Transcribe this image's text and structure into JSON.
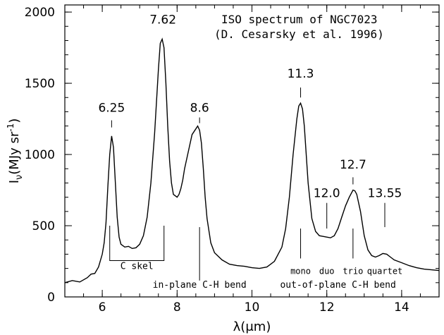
{
  "chart_data": {
    "type": "line",
    "title_lines": [
      "ISO spectrum of NGC7023",
      "(D. Cesarsky et al. 1996)"
    ],
    "xlabel": "λ(μm)",
    "ylabel_base": "I",
    "ylabel_sub": "ν",
    "ylabel_rest": "(MJy sr",
    "ylabel_sup": "-1",
    "ylabel_close": ")",
    "xlim": [
      5,
      15
    ],
    "ylim": [
      0,
      2050
    ],
    "xticks": [
      6,
      8,
      10,
      12,
      14
    ],
    "xtick_labels": [
      "6",
      "8",
      "10",
      "12",
      "14"
    ],
    "yticks": [
      0,
      500,
      1000,
      1500,
      2000
    ],
    "ytick_labels": [
      "0",
      "500",
      "1000",
      "1500",
      "2000"
    ],
    "x_minor_step": 0.5,
    "y_minor_step": 100,
    "grid": false,
    "series": [
      {
        "x": [
          5.0,
          5.2,
          5.4,
          5.6,
          5.7,
          5.8,
          5.9,
          6.0,
          6.05,
          6.1,
          6.15,
          6.2,
          6.25,
          6.3,
          6.35,
          6.4,
          6.45,
          6.5,
          6.6,
          6.7,
          6.8,
          6.9,
          7.0,
          7.1,
          7.2,
          7.3,
          7.4,
          7.5,
          7.55,
          7.6,
          7.65,
          7.7,
          7.75,
          7.8,
          7.85,
          7.9,
          8.0,
          8.05,
          8.1,
          8.15,
          8.2,
          8.3,
          8.4,
          8.5,
          8.55,
          8.6,
          8.65,
          8.7,
          8.75,
          8.8,
          8.9,
          9.0,
          9.2,
          9.4,
          9.6,
          9.8,
          10.0,
          10.2,
          10.4,
          10.6,
          10.8,
          10.9,
          11.0,
          11.1,
          11.2,
          11.25,
          11.3,
          11.35,
          11.4,
          11.5,
          11.6,
          11.7,
          11.8,
          11.9,
          12.0,
          12.1,
          12.2,
          12.3,
          12.4,
          12.5,
          12.6,
          12.7,
          12.75,
          12.8,
          12.9,
          13.0,
          13.1,
          13.2,
          13.3,
          13.4,
          13.5,
          13.6,
          13.7,
          13.8,
          14.0,
          14.2,
          14.4,
          14.6,
          14.8,
          15.0
        ],
        "y": [
          100,
          115,
          105,
          135,
          160,
          165,
          210,
          300,
          380,
          520,
          780,
          1000,
          1130,
          1050,
          800,
          560,
          420,
          370,
          350,
          355,
          340,
          345,
          370,
          430,
          560,
          800,
          1150,
          1600,
          1780,
          1810,
          1750,
          1500,
          1200,
          950,
          800,
          720,
          700,
          720,
          760,
          820,
          900,
          1020,
          1140,
          1180,
          1200,
          1170,
          1080,
          900,
          700,
          550,
          380,
          310,
          260,
          230,
          220,
          215,
          205,
          200,
          210,
          250,
          350,
          480,
          700,
          1000,
          1250,
          1340,
          1360,
          1320,
          1200,
          800,
          550,
          460,
          430,
          425,
          420,
          415,
          430,
          480,
          560,
          640,
          700,
          750,
          745,
          720,
          600,
          430,
          330,
          290,
          280,
          290,
          305,
          300,
          280,
          260,
          240,
          220,
          205,
          195,
          190,
          185
        ]
      }
    ],
    "peak_labels": [
      {
        "text": "6.25",
        "x": 6.25,
        "y_text": 1300,
        "line_top": 1190,
        "line_bottom": 1240
      },
      {
        "text": "7.62",
        "x": 7.62,
        "y_text": 1920,
        "line_top": 1840,
        "line_bottom": 1840
      },
      {
        "text": "8.6",
        "x": 8.6,
        "y_text": 1300,
        "line_top": 1220,
        "line_bottom": 1260
      },
      {
        "text": "11.3",
        "x": 11.3,
        "y_text": 1540,
        "line_top": 1400,
        "line_bottom": 1470
      },
      {
        "text": "12.0",
        "x": 12.0,
        "y_text": 700,
        "line_top": 480,
        "line_bottom": 660
      },
      {
        "text": "12.7",
        "x": 12.7,
        "y_text": 900,
        "line_top": 790,
        "line_bottom": 840
      },
      {
        "text": "13.55",
        "x": 13.55,
        "y_text": 700,
        "line_top": 490,
        "line_bottom": 660
      }
    ],
    "annotations": {
      "c_skel": {
        "text": "C skel",
        "x_left": 6.2,
        "x_right": 7.65,
        "y_top": 500,
        "y_bottom": 255,
        "label_y": 195
      },
      "in_plane": {
        "text": "in-plane C-H bend",
        "line_x": 8.6,
        "line_top": 490,
        "line_bottom": 115,
        "label_x": 8.6,
        "label_y": 65
      },
      "out_of_plane": {
        "text": "out-of-plane C-H bend",
        "label_x": 12.3,
        "label_y": 65
      },
      "mono": {
        "text": "mono",
        "line_x": 11.3,
        "line_top": 480,
        "line_bottom": 270,
        "label_x": 11.3,
        "label_y": 160
      },
      "duo": {
        "text": "duo",
        "label_x": 12.0,
        "label_y": 160
      },
      "trio": {
        "text": "trio",
        "line_x": 12.7,
        "line_top": 480,
        "line_bottom": 270,
        "label_x": 12.7,
        "label_y": 160
      },
      "quartet": {
        "text": "quartet",
        "label_x": 13.55,
        "label_y": 160
      }
    }
  }
}
